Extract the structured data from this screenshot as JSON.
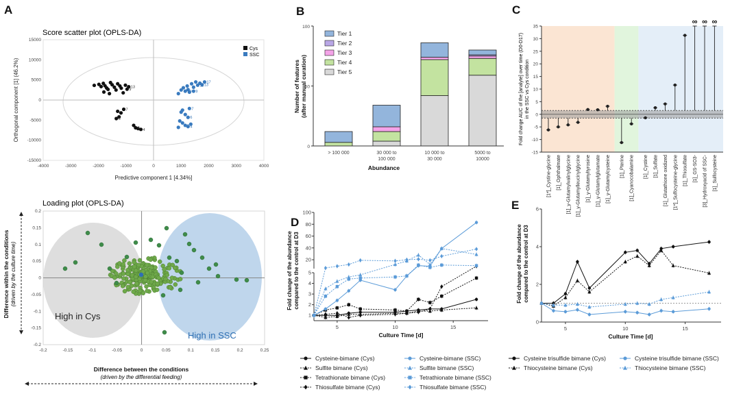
{
  "colors": {
    "cys": "#111111",
    "ssc": "#3a7bbf",
    "green": "#6fa94a",
    "lightblue": "#5b9bd8",
    "ellipseGrey": "#d3d3d3",
    "ellipseBlue": "#a9c8e6",
    "peach": "#fbe5d3",
    "mint": "#e1f5dd",
    "sky": "#e4eef8"
  },
  "panelA": {
    "label": "A",
    "score": {
      "title": "Score scatter plot (OPLS-DA)",
      "xlabel": "Predictive component 1 [4.34%]",
      "ylabel": "Orthogonal component [1] (46.2%)",
      "xticks": [
        "-4000",
        "-3000",
        "-2000",
        "-1000",
        "0",
        "1000",
        "2000",
        "3000",
        "4000"
      ],
      "yticks": [
        "15000",
        "10000",
        "5000",
        "0",
        "-5000",
        "-10000",
        "-15000"
      ],
      "legend": [
        {
          "name": "Cys",
          "color": "#111111"
        },
        {
          "name": "SSC",
          "color": "#3a7bbf"
        }
      ],
      "cys_points": [
        {
          "x": -2150,
          "y": 3650
        },
        {
          "x": -1980,
          "y": 3900
        },
        {
          "x": -1900,
          "y": 3350
        },
        {
          "x": -1820,
          "y": 4150
        },
        {
          "x": -1760,
          "y": 3550
        },
        {
          "x": -1700,
          "y": 3000
        },
        {
          "x": -1650,
          "y": 2650
        },
        {
          "x": -1560,
          "y": 4350
        },
        {
          "x": -1500,
          "y": 3800
        },
        {
          "x": -1420,
          "y": 3200
        },
        {
          "x": -1360,
          "y": 2500
        },
        {
          "x": -1300,
          "y": 4050
        },
        {
          "x": -1220,
          "y": 3500
        },
        {
          "x": -1170,
          "y": 2950
        },
        {
          "x": -1100,
          "y": 1800
        },
        {
          "x": -1020,
          "y": 3700
        },
        {
          "x": -960,
          "y": 2700
        },
        {
          "x": -900,
          "y": 3300
        },
        {
          "x": -1800,
          "y": 2000
        },
        {
          "x": -1600,
          "y": 1600
        },
        {
          "x": -1300,
          "y": -2800
        },
        {
          "x": -1180,
          "y": -3200
        },
        {
          "x": -1080,
          "y": -2300
        },
        {
          "x": -1350,
          "y": -4600
        },
        {
          "x": -1250,
          "y": -4200
        },
        {
          "x": -720,
          "y": -6300
        },
        {
          "x": -650,
          "y": -6900
        },
        {
          "x": -560,
          "y": -7100
        },
        {
          "x": -460,
          "y": -7300
        }
      ],
      "ssc_points": [
        {
          "x": 900,
          "y": 1600
        },
        {
          "x": 1000,
          "y": 2500
        },
        {
          "x": 1080,
          "y": 3050
        },
        {
          "x": 1150,
          "y": 2200
        },
        {
          "x": 1220,
          "y": 3500
        },
        {
          "x": 1300,
          "y": 1950
        },
        {
          "x": 1380,
          "y": 4050
        },
        {
          "x": 1450,
          "y": 3200
        },
        {
          "x": 1530,
          "y": 4500
        },
        {
          "x": 1600,
          "y": 3700
        },
        {
          "x": 1680,
          "y": 4200
        },
        {
          "x": 1760,
          "y": 3800
        },
        {
          "x": 1850,
          "y": 4500
        },
        {
          "x": 1250,
          "y": 2600
        },
        {
          "x": 1450,
          "y": 2200
        },
        {
          "x": 1000,
          "y": -3000
        },
        {
          "x": 1050,
          "y": -2500
        },
        {
          "x": 1150,
          "y": -3600
        },
        {
          "x": 1250,
          "y": -4300
        },
        {
          "x": 1300,
          "y": -2100
        },
        {
          "x": 950,
          "y": -5200
        },
        {
          "x": 1050,
          "y": -5700
        },
        {
          "x": 1150,
          "y": -6300
        },
        {
          "x": 1250,
          "y": -6600
        },
        {
          "x": 1350,
          "y": -6000
        },
        {
          "x": 900,
          "y": -6800
        }
      ],
      "point_labels": [
        {
          "group": "cys",
          "text": "13",
          "x": -900,
          "y": 3300
        },
        {
          "group": "cys",
          "text": "9",
          "x": -960,
          "y": 2700
        },
        {
          "group": "cys",
          "text": "7",
          "x": -1080,
          "y": -2300
        },
        {
          "group": "cys",
          "text": "6",
          "x": -1350,
          "y": -4600
        },
        {
          "group": "cys",
          "text": "4",
          "x": -460,
          "y": -7300
        },
        {
          "group": "cys",
          "text": "5",
          "x": -650,
          "y": -6900
        },
        {
          "group": "ssc",
          "text": "17",
          "x": 1850,
          "y": 4500
        },
        {
          "group": "ssc",
          "text": "13",
          "x": 1760,
          "y": 3800
        },
        {
          "group": "ssc",
          "text": "11",
          "x": 1600,
          "y": 3700
        },
        {
          "group": "ssc",
          "text": "9",
          "x": 1450,
          "y": 2200
        },
        {
          "group": "ssc",
          "text": "10",
          "x": 1150,
          "y": 2200
        },
        {
          "group": "ssc",
          "text": "7",
          "x": 1300,
          "y": -2100
        },
        {
          "group": "ssc",
          "text": "6",
          "x": 1250,
          "y": -4300
        },
        {
          "group": "ssc",
          "text": "5",
          "x": 1150,
          "y": -6300
        },
        {
          "group": "ssc",
          "text": "4",
          "x": 1250,
          "y": -6600
        }
      ]
    },
    "loading": {
      "title": "Loading plot (OPLS-DA)",
      "xlabel": "Difference between the conditions",
      "xsub": "(driven by the differential feeding)",
      "ylabel": "Difference within the conditions",
      "ysub": "(driven by the culture time)",
      "xticks": [
        "-0.2",
        "-0.15",
        "-0.1",
        "-0.05",
        "0",
        "0.05",
        "0.1",
        "0.15",
        "0.2",
        "0.25"
      ],
      "yticks": [
        "0.2",
        "0.15",
        "0.1",
        "0.05",
        "0",
        "-0.05",
        "-0.1",
        "-0.15",
        "-0.2"
      ],
      "highCys": "High in Cys",
      "highSSC": "High in SSC"
    }
  },
  "chart_data": [
    {
      "type": "bar",
      "panel": "B",
      "categories": [
        "> 100 000",
        "30 000 to 100 000",
        "10 000 to 30 000",
        "5000 to 10000"
      ],
      "series": [
        {
          "name": "Tier 5",
          "color": "#d9d9d9",
          "values": [
            0,
            4,
            42,
            59
          ]
        },
        {
          "name": "Tier 4",
          "color": "#c3e3a0",
          "values": [
            3,
            8,
            30,
            14
          ]
        },
        {
          "name": "Tier 3",
          "color": "#f4a3e8",
          "values": [
            0,
            4,
            2,
            2
          ]
        },
        {
          "name": "Tier 2",
          "color": "#b9a7e6",
          "values": [
            0,
            0,
            0,
            1
          ]
        },
        {
          "name": "Tier 1",
          "color": "#93b5dc",
          "values": [
            9,
            18,
            12,
            4
          ]
        }
      ],
      "title": "",
      "xlabel": "Abundance",
      "ylabel": "Number of features",
      "ylabel2": "(after manual curation)",
      "ylim": [
        0,
        100
      ],
      "yticks": [
        "0",
        "50",
        "100"
      ]
    },
    {
      "type": "lollipop",
      "panel": "C",
      "ylabel": "Fold change AUC of the [analyte] over time (D0-D17)",
      "ylabel2": "in the SSC vs Cys condition",
      "ylim": [
        -15,
        35
      ],
      "yticks": [
        "-15",
        "-10",
        "-5",
        "0",
        "5",
        "10",
        "15",
        "20",
        "25",
        "30",
        "35"
      ],
      "infinity": "∞",
      "categories": [
        "[1*]_Cystine-glycine",
        "[1]_Ophthalmate",
        "[1]_γ-Glutamylvalinylglycine",
        "[1]_γ-Glutamylleucinylglycine",
        "[1]_γ-Glutamyltyrosine",
        "[1]_γ-Glutamylglutamate",
        "[1]_γ-Glutamylcysteine",
        "[1]_Pterine",
        "[1]_Cyanocobalamine",
        "[1]_Cystine",
        "[1]_Sulfate",
        "[1]_Glutathione oxidized",
        "[1*]_Sulfocysteine-glycine",
        "[1]_Thiosulfate",
        "[1]_GS-SO3-",
        "[3]_Hydroxyacid of SSC-",
        "[1]_Sulfocysteine"
      ],
      "values": [
        -6.2,
        -5.0,
        -4.2,
        -3.2,
        1.9,
        1.8,
        3.2,
        -11.2,
        -3.8,
        -1.4,
        2.6,
        4.1,
        11.6,
        31.3,
        "inf",
        "inf",
        "inf"
      ],
      "groups": [
        {
          "from": 0,
          "to": 6,
          "color": "#fbe5d3"
        },
        {
          "from": 7,
          "to": 8,
          "color": "#e1f5dd"
        },
        {
          "from": 9,
          "to": 16,
          "color": "#e4eef8"
        }
      ]
    },
    {
      "type": "line",
      "panel": "D",
      "ylabel": "Fold change of the abundance",
      "ylabel2": "compared to the control at D3",
      "xlabel": "Culture Time [d]",
      "xticks": [
        "5",
        "10",
        "15"
      ],
      "yticks_low": [
        "1",
        "2",
        "3",
        "4",
        "5"
      ],
      "yticks_high": [
        "20",
        "40",
        "60",
        "80",
        "100"
      ],
      "x": [
        3,
        4,
        5,
        6,
        7,
        10,
        11,
        12,
        13,
        14,
        17
      ],
      "series": [
        {
          "name": "Cysteine-bimane (Cys)",
          "color": "#111111",
          "marker": "circle",
          "dash": "solid",
          "values": [
            1.0,
            1.0,
            1.0,
            1.2,
            1.3,
            1.3,
            1.4,
            1.5,
            1.6,
            1.6,
            2.5
          ]
        },
        {
          "name": "Sulfite bimane (Cys)",
          "color": "#111111",
          "marker": "triangle",
          "dash": "dotted",
          "values": [
            1.0,
            0.8,
            0.9,
            1.1,
            1.1,
            1.2,
            1.2,
            1.4,
            1.4,
            1.5,
            1.7
          ]
        },
        {
          "name": "Tetrathionate bimane (Cys)",
          "color": "#111111",
          "marker": "square",
          "dash": "dotted",
          "values": [
            1.0,
            1.5,
            1.7,
            2.0,
            1.6,
            1.5,
            1.4,
            2.5,
            2.2,
            2.8,
            4.5
          ]
        },
        {
          "name": "Thiosulfate bimane (Cys)",
          "color": "#111111",
          "marker": "diamond",
          "dash": "dotted",
          "values": [
            1.0,
            1.1,
            1.2,
            0.8,
            1.0,
            1.1,
            1.2,
            1.3,
            1.6,
            3.7,
            9
          ]
        },
        {
          "name": "Cysteine-bimane (SSC)",
          "color": "#5b9bd8",
          "marker": "circle",
          "dash": "solid",
          "values": [
            1.0,
            1.6,
            2.4,
            3.3,
            4.3,
            3.4,
            4.7,
            10,
            9,
            39,
            83
          ]
        },
        {
          "name": "Sulfite bimane (SSC)",
          "color": "#5b9bd8",
          "marker": "triangle",
          "dash": "dotted",
          "values": [
            1.0,
            3.5,
            4.2,
            4.6,
            4.8,
            12,
            18,
            28,
            12,
            39,
            29
          ]
        },
        {
          "name": "Tetrathionate bimane (SSC)",
          "color": "#5b9bd8",
          "marker": "square",
          "dash": "dotted",
          "values": [
            1.0,
            2.8,
            3.7,
            4.4,
            4.5,
            4.6,
            4.7,
            11,
            7,
            11,
            10
          ]
        },
        {
          "name": "Thiosulfate bimane (SSC)",
          "color": "#5b9bd8",
          "marker": "diamond",
          "dash": "dotted",
          "values": [
            1.0,
            6,
            9,
            12,
            19,
            18,
            20,
            21,
            19,
            26,
            38
          ]
        }
      ]
    },
    {
      "type": "line",
      "panel": "E",
      "ylabel": "Fold change of the abundance",
      "ylabel2": "compared to the control at D3",
      "xlabel": "Culture Time [d]",
      "xticks": [
        "5",
        "10",
        "15"
      ],
      "yticks": [
        "0",
        "2",
        "4",
        "6"
      ],
      "ylim": [
        0,
        6
      ],
      "x": [
        3,
        4,
        5,
        6,
        7,
        10,
        11,
        12,
        13,
        14,
        17
      ],
      "series": [
        {
          "name": "Cysteine trisulfide bimane (Cys)",
          "color": "#111111",
          "marker": "circle",
          "dash": "solid",
          "values": [
            1.0,
            1.0,
            1.5,
            3.2,
            1.8,
            3.7,
            3.8,
            3.1,
            3.9,
            4.0,
            4.25
          ]
        },
        {
          "name": "Thiocysteine bimane (Cys)",
          "color": "#111111",
          "marker": "triangle",
          "dash": "dotted",
          "values": [
            1.0,
            0.85,
            1.3,
            2.2,
            1.6,
            3.2,
            3.5,
            3.0,
            3.8,
            3.0,
            2.6
          ]
        },
        {
          "name": "Cysteine trisulfide bimane (SSC)",
          "color": "#5b9bd8",
          "marker": "circle",
          "dash": "solid",
          "values": [
            1.0,
            0.6,
            0.55,
            0.65,
            0.4,
            0.55,
            0.5,
            0.4,
            0.6,
            0.55,
            0.7
          ]
        },
        {
          "name": "Thiocysteine bimane (SSC)",
          "color": "#5b9bd8",
          "marker": "triangle",
          "dash": "dotted",
          "values": [
            1.0,
            0.9,
            0.9,
            0.95,
            0.8,
            0.95,
            1.0,
            0.95,
            1.2,
            1.3,
            1.6
          ]
        }
      ]
    }
  ]
}
